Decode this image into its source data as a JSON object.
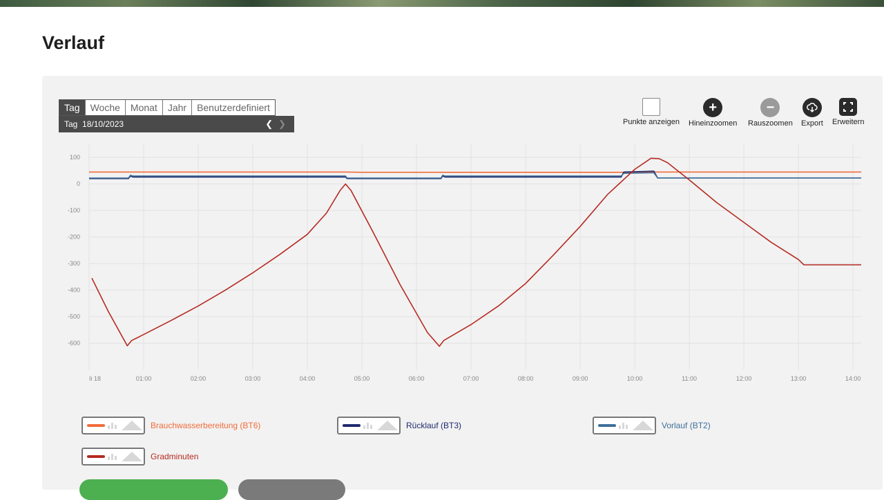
{
  "page": {
    "title": "Verlauf"
  },
  "period": {
    "tabs": [
      {
        "label": "Tag",
        "active": true
      },
      {
        "label": "Woche",
        "active": false
      },
      {
        "label": "Monat",
        "active": false
      },
      {
        "label": "Jahr",
        "active": false
      },
      {
        "label": "Benutzerdefiniert",
        "active": false
      }
    ],
    "current": "Tag  18/10/2023",
    "prev_icon": "chevron-left-icon",
    "next_icon": "chevron-right-icon"
  },
  "toolbar": {
    "show_points": "Punkte anzeigen",
    "zoom_in": "Hineinzoomen",
    "zoom_out": "Rauszoomen",
    "export": "Export",
    "expand": "Erweitern"
  },
  "colors": {
    "bt6": "#f26b3a",
    "bt3": "#1f2a6e",
    "bt2": "#3f6f9a",
    "gm": "#b52a22"
  },
  "chart_data": {
    "type": "line",
    "x_ticks": [
      "Ii 18",
      "01:00",
      "02:00",
      "03:00",
      "04:00",
      "05:00",
      "06:00",
      "07:00",
      "08:00",
      "09:00",
      "10:00",
      "11:00",
      "12:00",
      "13:00",
      "14:00"
    ],
    "y_ticks": [
      "100",
      "0",
      "-100",
      "-200",
      "-300",
      "-400",
      "-500",
      "-600"
    ],
    "xlim": [
      0,
      14.15
    ],
    "ylim": [
      -700,
      150
    ],
    "grid": true,
    "series": [
      {
        "name": "Brauchwasserbereitung (BT6)",
        "color_key": "bt6",
        "points": [
          [
            0,
            45
          ],
          [
            4.7,
            45
          ],
          [
            5,
            44
          ],
          [
            9.8,
            44
          ],
          [
            10.3,
            45
          ],
          [
            14.15,
            45
          ]
        ]
      },
      {
        "name": "Rücklauf (BT3)",
        "color_key": "bt3",
        "points": [
          [
            0,
            20
          ],
          [
            0.72,
            20
          ],
          [
            0.76,
            30
          ],
          [
            0.8,
            26
          ],
          [
            4.7,
            26
          ],
          [
            4.73,
            20
          ],
          [
            6.45,
            20
          ],
          [
            6.48,
            30
          ],
          [
            6.52,
            26
          ],
          [
            9.75,
            26
          ],
          [
            9.8,
            45
          ],
          [
            10.35,
            48
          ],
          [
            10.42,
            22
          ],
          [
            14.15,
            22
          ]
        ]
      },
      {
        "name": "Vorlauf (BT2)",
        "color_key": "bt2",
        "points": [
          [
            0,
            22
          ],
          [
            0.72,
            22
          ],
          [
            0.76,
            33
          ],
          [
            0.8,
            30
          ],
          [
            4.7,
            30
          ],
          [
            4.73,
            22
          ],
          [
            6.45,
            22
          ],
          [
            6.48,
            33
          ],
          [
            6.52,
            30
          ],
          [
            9.75,
            30
          ],
          [
            9.8,
            40
          ],
          [
            10.35,
            42
          ],
          [
            10.42,
            22
          ],
          [
            14.15,
            22
          ]
        ]
      },
      {
        "name": "Gradminuten",
        "color_key": "gm",
        "points": [
          [
            0.05,
            -355
          ],
          [
            0.35,
            -480
          ],
          [
            0.7,
            -610
          ],
          [
            0.78,
            -590
          ],
          [
            0.9,
            -578
          ],
          [
            1.5,
            -515
          ],
          [
            2,
            -460
          ],
          [
            2.5,
            -400
          ],
          [
            3,
            -335
          ],
          [
            3.5,
            -265
          ],
          [
            4,
            -190
          ],
          [
            4.35,
            -110
          ],
          [
            4.6,
            -25
          ],
          [
            4.7,
            0
          ],
          [
            4.8,
            -25
          ],
          [
            5.2,
            -180
          ],
          [
            5.7,
            -380
          ],
          [
            6.2,
            -560
          ],
          [
            6.42,
            -612
          ],
          [
            6.5,
            -590
          ],
          [
            6.6,
            -578
          ],
          [
            7,
            -530
          ],
          [
            7.5,
            -460
          ],
          [
            8,
            -375
          ],
          [
            8.5,
            -270
          ],
          [
            9,
            -160
          ],
          [
            9.5,
            -40
          ],
          [
            10,
            55
          ],
          [
            10.25,
            90
          ],
          [
            10.3,
            97
          ],
          [
            10.45,
            95
          ],
          [
            10.6,
            80
          ],
          [
            11,
            15
          ],
          [
            11.5,
            -70
          ],
          [
            12,
            -145
          ],
          [
            12.5,
            -220
          ],
          [
            13,
            -285
          ],
          [
            13.1,
            -305
          ],
          [
            14.15,
            -305
          ]
        ]
      }
    ]
  },
  "legend": [
    {
      "name": "Brauchwasserbereitung (BT6)",
      "color_key": "bt6"
    },
    {
      "name": "Rücklauf (BT3)",
      "color_key": "bt3"
    },
    {
      "name": "Vorlauf (BT2)",
      "color_key": "bt2"
    },
    {
      "name": "Gradminuten",
      "color_key": "gm"
    }
  ]
}
